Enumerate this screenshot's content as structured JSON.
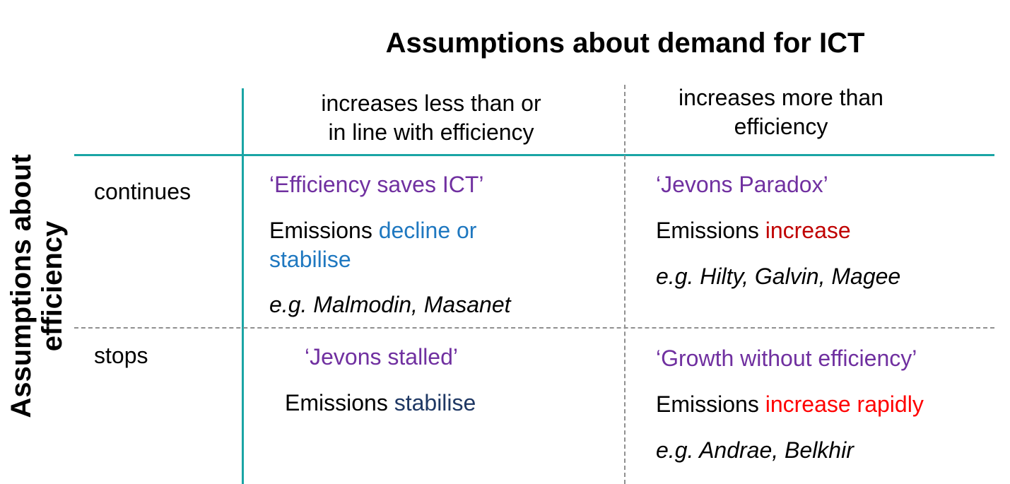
{
  "title": "Assumptions about demand for ICT",
  "y_axis_title_line1": "Assumptions about",
  "y_axis_title_line2": "efficiency",
  "columns": {
    "col1_line1": "increases less than or",
    "col1_line2": "in line with efficiency",
    "col2_line1": "increases more than",
    "col2_line2": "efficiency"
  },
  "rows": {
    "row1": "continues",
    "row2": "stops"
  },
  "cells": {
    "c11": {
      "scenario": "‘Efficiency saves ICT’",
      "emissions_prefix": "Emissions ",
      "emissions_line1": "decline or",
      "emissions_line2": "stabilise",
      "examples": "e.g. Malmodin, Masanet"
    },
    "c12": {
      "scenario": "‘Jevons Paradox’",
      "emissions_prefix": "Emissions ",
      "emissions": "increase",
      "examples": "e.g. Hilty, Galvin, Magee"
    },
    "c21": {
      "scenario": "‘Jevons stalled’",
      "emissions_prefix": "Emissions ",
      "emissions": "stabilise"
    },
    "c22": {
      "scenario": "‘Growth without efficiency’",
      "emissions_prefix": "Emissions ",
      "emissions": "increase rapidly",
      "examples": "e.g. Andrae, Belkhir"
    }
  },
  "colors": {
    "grid_teal": "#1aa5a5",
    "dashed_grey": "#909090",
    "scenario_purple": "#7030a0",
    "decline_blue": "#1f78c0",
    "stabilise_navy": "#1f3864",
    "increase_darkred": "#c00000",
    "increase_rapid_red": "#ff0000"
  }
}
